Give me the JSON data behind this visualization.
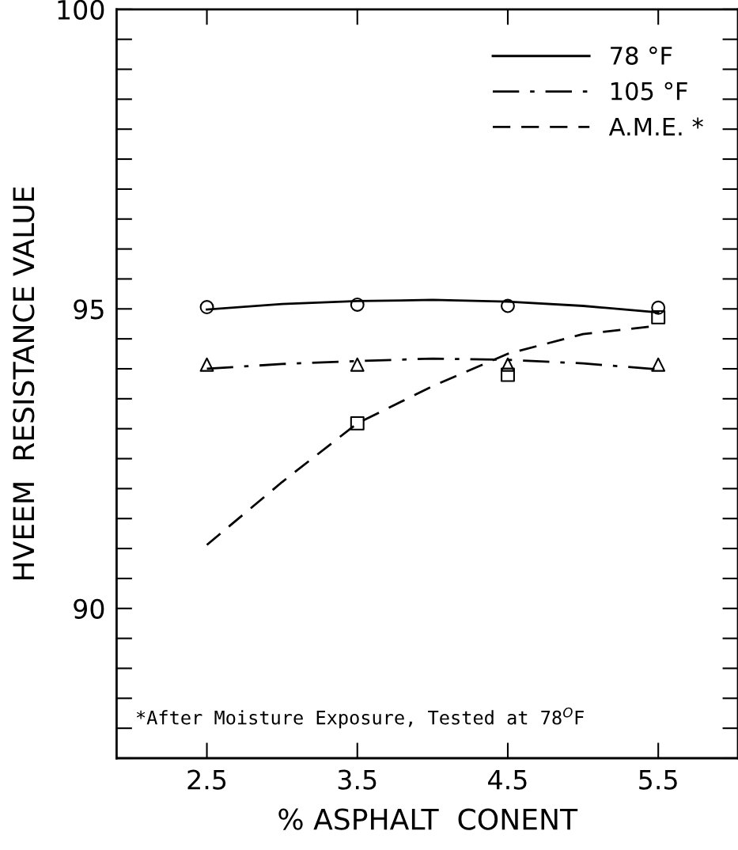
{
  "chart_data": {
    "type": "line",
    "xlabel": "% ASPHALT  CONENT",
    "ylabel": "HVEEM  RESISTANCE VALUE",
    "xlim": [
      1.9,
      6.03
    ],
    "ylim": [
      87.5,
      100
    ],
    "xticks": [
      2.5,
      3.5,
      4.5,
      5.5
    ],
    "yticks": [
      90,
      95,
      100
    ],
    "grid": false,
    "legend": "top right",
    "series": [
      {
        "name": "78 °F",
        "color": "#000000",
        "line_style": "solid",
        "marker": "none",
        "x": [
          2.5,
          3.0,
          3.5,
          4.0,
          4.5,
          5.0,
          5.5
        ],
        "values": [
          94.99,
          95.08,
          95.13,
          95.15,
          95.12,
          95.05,
          94.94
        ]
      },
      {
        "name": "105 °F",
        "color": "#000000",
        "line_style": "dashdot",
        "marker": "none",
        "x": [
          2.5,
          3.0,
          3.5,
          4.0,
          4.5,
          5.0,
          5.5
        ],
        "values": [
          94.0,
          94.08,
          94.13,
          94.17,
          94.15,
          94.09,
          93.99
        ]
      },
      {
        "name": "A.M.E. *",
        "color": "#000000",
        "line_style": "dashed",
        "marker": "none",
        "x": [
          2.5,
          3.0,
          3.5,
          4.0,
          4.5,
          5.0,
          5.5
        ],
        "values": [
          91.06,
          92.11,
          93.09,
          93.71,
          94.25,
          94.58,
          94.72
        ]
      },
      {
        "type": "scatter",
        "color": "#000000",
        "marker": "circle",
        "x": [
          2.5,
          3.5,
          4.5,
          5.5
        ],
        "values": [
          95.03,
          95.07,
          95.05,
          95.02
        ]
      },
      {
        "type": "scatter",
        "color": "#000000",
        "marker": "triangle",
        "x": [
          2.5,
          3.5,
          4.5,
          5.5
        ],
        "values": [
          94.07,
          94.07,
          94.07,
          94.07
        ]
      },
      {
        "type": "scatter",
        "color": "#000000",
        "marker": "square",
        "x": [
          3.5,
          4.5,
          5.5
        ],
        "values": [
          93.09,
          93.9,
          94.86
        ]
      }
    ],
    "annotations": [
      "*After Moisture Exposure, Tested at 78$^{O}$F"
    ]
  }
}
